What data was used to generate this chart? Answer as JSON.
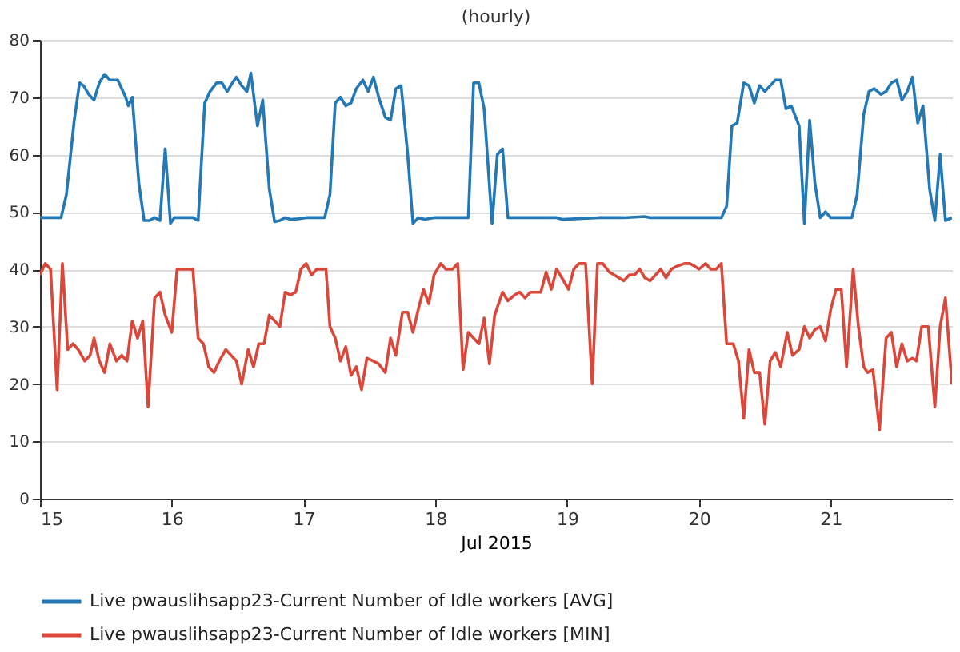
{
  "chart_data": {
    "type": "line",
    "title": "(hourly)",
    "xlabel": "Jul 2015",
    "xlim": [
      15,
      21.92
    ],
    "xticks": [
      15,
      16,
      17,
      18,
      19,
      20,
      21
    ],
    "ylim": [
      0,
      80
    ],
    "yticks": [
      0,
      10,
      20,
      30,
      40,
      50,
      60,
      70,
      80
    ],
    "grid": "y",
    "legend": "bottom",
    "marker": "none",
    "line_style": "solid",
    "series": [
      {
        "name": "Live pwauslihsapp23-Current Number of Idle workers [AVG]",
        "color": "#2378b5",
        "x": [
          15.0,
          15.16,
          15.2,
          15.26,
          15.3,
          15.33,
          15.37,
          15.41,
          15.45,
          15.49,
          15.53,
          15.59,
          15.65,
          15.67,
          15.7,
          15.75,
          15.79,
          15.83,
          15.87,
          15.91,
          15.95,
          15.99,
          16.02,
          16.1,
          16.16,
          16.2,
          16.25,
          16.29,
          16.34,
          16.38,
          16.42,
          16.46,
          16.49,
          16.53,
          16.57,
          16.6,
          16.65,
          16.69,
          16.74,
          16.78,
          16.82,
          16.86,
          16.9,
          16.96,
          17.02,
          17.16,
          17.2,
          17.24,
          17.28,
          17.32,
          17.36,
          17.4,
          17.45,
          17.49,
          17.53,
          17.57,
          17.62,
          17.66,
          17.7,
          17.74,
          17.79,
          17.83,
          17.87,
          17.92,
          17.99,
          18.25,
          18.29,
          18.33,
          18.37,
          18.43,
          18.47,
          18.51,
          18.55,
          18.92,
          18.96,
          19.24,
          19.43,
          19.59,
          19.63,
          20.17,
          20.21,
          20.25,
          20.29,
          20.34,
          20.38,
          20.42,
          20.46,
          20.5,
          20.54,
          20.58,
          20.62,
          20.66,
          20.7,
          20.76,
          20.8,
          20.84,
          20.88,
          20.92,
          20.96,
          21.0,
          21.16,
          21.2,
          21.25,
          21.29,
          21.33,
          21.38,
          21.42,
          21.46,
          21.5,
          21.54,
          21.58,
          21.62,
          21.66,
          21.7,
          21.75,
          21.79,
          21.83,
          21.87,
          21.92
        ],
        "values": [
          49,
          49,
          53,
          66,
          72.5,
          72,
          70.5,
          69.5,
          72.5,
          74,
          73,
          73,
          70,
          68.5,
          70,
          55,
          48.5,
          48.5,
          49,
          48.5,
          61,
          48,
          49,
          49,
          49,
          48.5,
          69,
          71,
          72.5,
          72.5,
          71,
          72.5,
          73.5,
          72,
          71,
          74.2,
          65,
          69.5,
          54,
          48.3,
          48.5,
          49,
          48.7,
          48.8,
          49,
          49,
          53,
          69,
          70,
          68.5,
          69,
          71.5,
          73,
          71,
          73.5,
          70,
          66.5,
          66,
          71.5,
          72,
          60,
          48,
          49,
          48.7,
          49,
          49,
          72.5,
          72.5,
          68,
          48,
          60,
          61,
          49,
          49,
          48.7,
          49,
          49,
          49.2,
          49,
          49,
          51,
          65,
          65.5,
          72.5,
          72,
          69,
          72,
          71,
          72,
          73,
          73,
          68,
          68.5,
          65,
          48,
          66,
          55,
          49,
          50,
          49,
          49,
          53,
          67,
          71,
          71.5,
          70.5,
          71,
          72.5,
          73,
          69.5,
          71,
          73.5,
          65.5,
          68.5,
          54,
          48.5,
          60,
          48.5,
          49
        ]
      },
      {
        "name": "Live pwauslihsapp23-Current Number of Idle workers [MIN]",
        "color": "#d9483b",
        "x": [
          15.0,
          15.04,
          15.08,
          15.13,
          15.17,
          15.21,
          15.25,
          15.29,
          15.34,
          15.38,
          15.41,
          15.45,
          15.49,
          15.53,
          15.58,
          15.62,
          15.66,
          15.7,
          15.74,
          15.78,
          15.82,
          15.87,
          15.91,
          15.95,
          16.0,
          16.04,
          16.09,
          16.16,
          16.2,
          16.24,
          16.28,
          16.32,
          16.36,
          16.41,
          16.45,
          16.49,
          16.53,
          16.58,
          16.62,
          16.66,
          16.7,
          16.74,
          16.78,
          16.82,
          16.86,
          16.9,
          16.94,
          16.98,
          17.02,
          17.06,
          17.1,
          17.17,
          17.2,
          17.24,
          17.28,
          17.32,
          17.36,
          17.4,
          17.44,
          17.48,
          17.53,
          17.57,
          17.62,
          17.66,
          17.7,
          17.75,
          17.79,
          17.83,
          17.87,
          17.91,
          17.95,
          17.99,
          18.04,
          18.08,
          18.13,
          18.17,
          18.21,
          18.25,
          18.29,
          18.33,
          18.37,
          18.41,
          18.45,
          18.51,
          18.55,
          18.6,
          18.64,
          18.68,
          18.72,
          18.76,
          18.8,
          18.84,
          18.88,
          18.92,
          18.96,
          19.01,
          19.05,
          19.09,
          19.14,
          19.19,
          19.23,
          19.27,
          19.32,
          19.43,
          19.47,
          19.51,
          19.55,
          19.59,
          19.63,
          19.67,
          19.71,
          19.75,
          19.79,
          19.83,
          19.89,
          19.93,
          19.97,
          20.0,
          20.05,
          20.09,
          20.13,
          20.17,
          20.21,
          20.26,
          20.3,
          20.34,
          20.38,
          20.42,
          20.46,
          20.5,
          20.54,
          20.58,
          20.62,
          20.67,
          20.71,
          20.76,
          20.8,
          20.84,
          20.88,
          20.92,
          20.96,
          21.0,
          21.04,
          21.08,
          21.12,
          21.17,
          21.21,
          21.25,
          21.28,
          21.32,
          21.37,
          21.42,
          21.46,
          21.5,
          21.54,
          21.58,
          21.62,
          21.65,
          21.69,
          21.74,
          21.79,
          21.83,
          21.87,
          21.92
        ],
        "values": [
          39,
          41,
          40,
          19,
          41,
          26,
          27,
          26,
          24,
          25,
          28,
          24,
          22,
          27,
          24,
          25,
          24,
          31,
          28,
          31,
          16,
          35,
          36,
          32,
          29,
          40,
          40,
          40,
          28,
          27,
          23,
          22,
          24,
          26,
          25,
          24,
          20,
          26,
          23,
          27,
          27,
          32,
          31,
          30,
          36,
          35.5,
          36,
          40,
          41,
          39,
          40,
          40,
          30,
          28,
          24,
          26.5,
          21.5,
          23,
          19,
          24.5,
          24,
          23.5,
          22,
          28,
          25,
          32.5,
          32.5,
          29,
          33,
          36.5,
          34,
          39,
          41,
          40,
          40,
          41,
          22.5,
          29,
          28,
          27,
          31.5,
          23.5,
          32,
          36,
          34.5,
          35.5,
          36,
          35,
          36,
          36,
          36,
          39.5,
          36.5,
          40,
          38.5,
          36.5,
          40,
          41,
          41,
          20,
          41,
          41,
          39.5,
          38,
          39,
          39,
          40,
          38.5,
          38,
          39,
          40,
          38.5,
          40,
          40.5,
          41,
          41,
          40.5,
          40,
          41,
          40,
          40,
          41,
          27,
          27,
          24,
          14,
          26,
          22,
          22,
          13,
          24,
          25.5,
          23,
          29,
          25,
          26,
          30,
          28,
          29.5,
          30,
          27.5,
          33,
          36.5,
          36.5,
          23,
          40,
          30,
          23,
          22,
          22.5,
          12,
          28,
          29,
          23,
          27,
          24,
          24.5,
          24,
          30,
          30,
          16,
          30,
          35,
          20
        ]
      }
    ]
  }
}
